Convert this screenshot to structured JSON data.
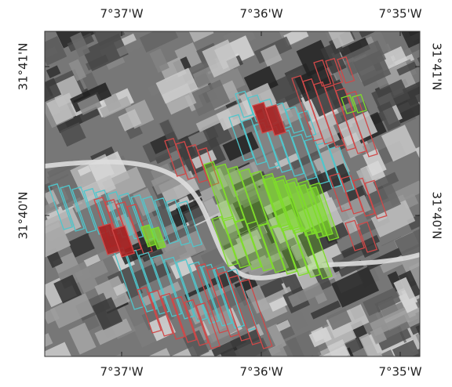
{
  "map": {
    "top_labels": [
      "7°37'W",
      "7°36'W",
      "7°35'W"
    ],
    "bottom_labels": [
      "7°37'W",
      "7°36'W",
      "7°35'W"
    ],
    "left_labels": [
      "31°41'N",
      "31°40'N"
    ],
    "right_labels": [
      "31°41'N",
      "31°40'N"
    ]
  }
}
